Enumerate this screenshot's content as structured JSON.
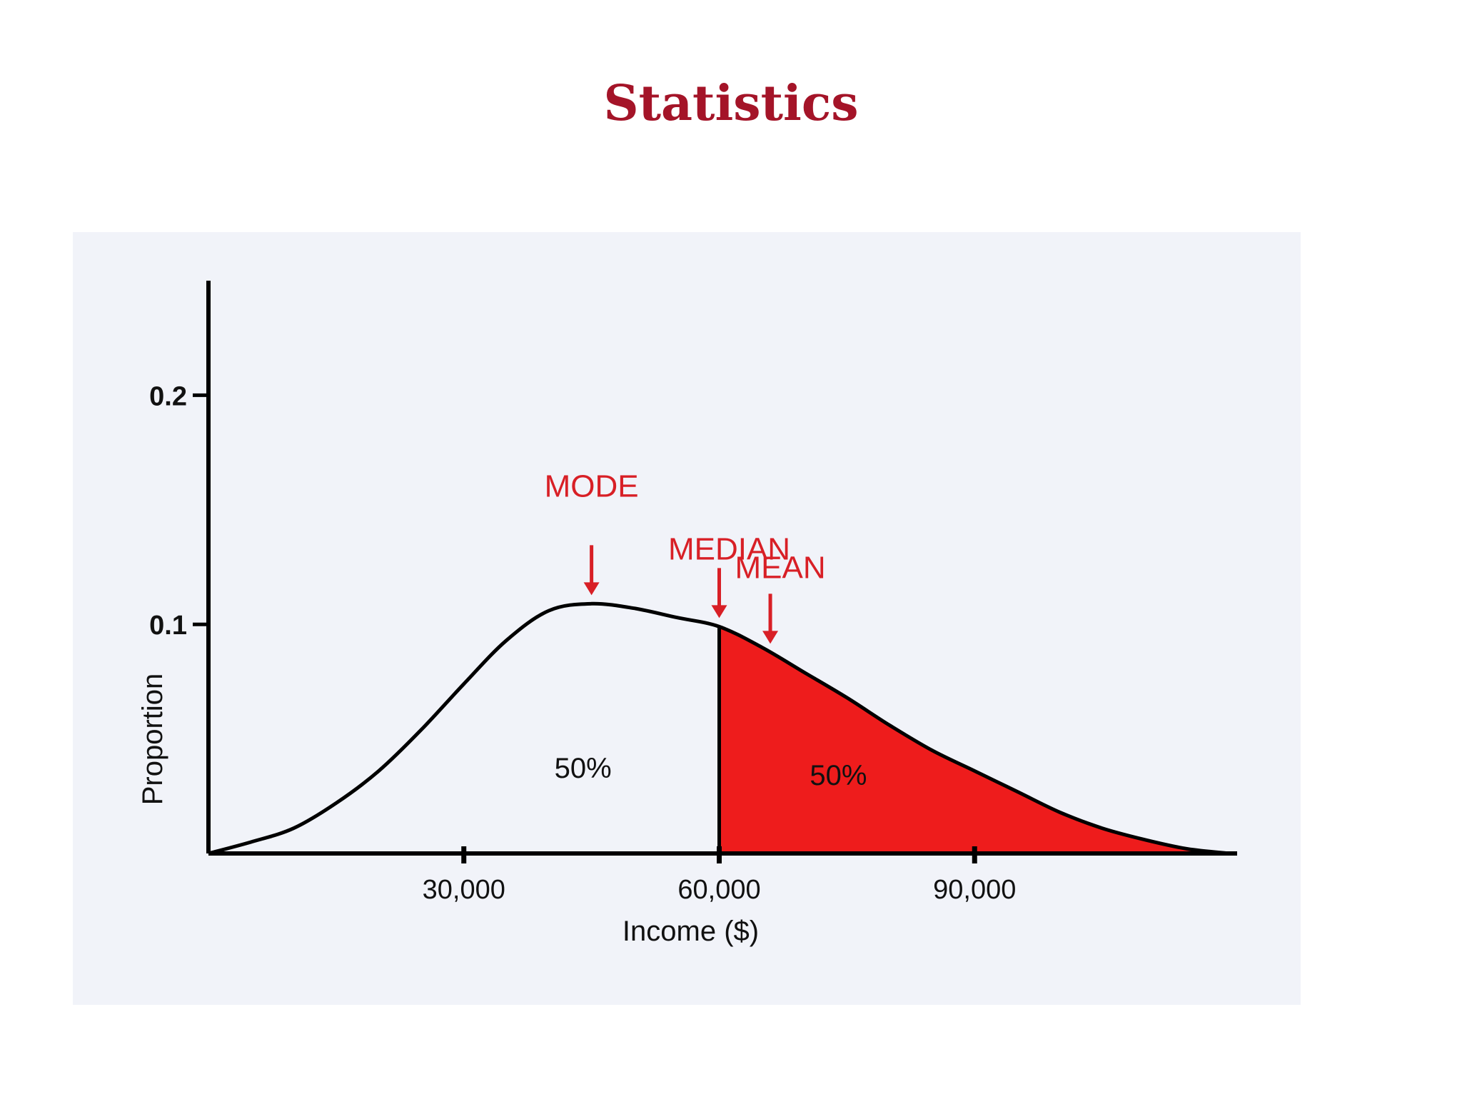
{
  "title": "Statistics",
  "chart_data": {
    "type": "area",
    "xlabel": "Income ($)",
    "ylabel": "Proportion",
    "xlim": [
      0,
      120000
    ],
    "ylim": [
      0,
      0.25
    ],
    "x_ticks": [
      {
        "value": 30000,
        "label": "30,000"
      },
      {
        "value": 60000,
        "label": "60,000"
      },
      {
        "value": 90000,
        "label": "90,000"
      }
    ],
    "y_ticks": [
      {
        "value": 0.1,
        "label": "0.1"
      },
      {
        "value": 0.2,
        "label": "0.2"
      }
    ],
    "series": [
      {
        "x": [
          0,
          5000,
          10000,
          15000,
          20000,
          25000,
          30000,
          35000,
          40000,
          45000,
          50000,
          55000,
          60000,
          65000,
          70000,
          75000,
          80000,
          85000,
          90000,
          95000,
          100000,
          105000,
          110000,
          115000,
          120000
        ],
        "y": [
          0.0,
          0.005,
          0.011,
          0.022,
          0.036,
          0.054,
          0.074,
          0.093,
          0.106,
          0.109,
          0.107,
          0.103,
          0.099,
          0.09,
          0.079,
          0.068,
          0.056,
          0.045,
          0.036,
          0.027,
          0.018,
          0.011,
          0.006,
          0.002,
          0.0
        ]
      }
    ],
    "shaded_from": 60000,
    "shade_color": "#ee1c1c",
    "markers": [
      {
        "label": "MODE",
        "x": 45000
      },
      {
        "label": "MEDIAN",
        "x": 60000
      },
      {
        "label": "MEAN",
        "x": 66000
      }
    ],
    "area_labels": [
      {
        "text": "50%",
        "x": 44000,
        "y": 0.033
      },
      {
        "text": "50%",
        "x": 74000,
        "y": 0.03
      }
    ]
  }
}
